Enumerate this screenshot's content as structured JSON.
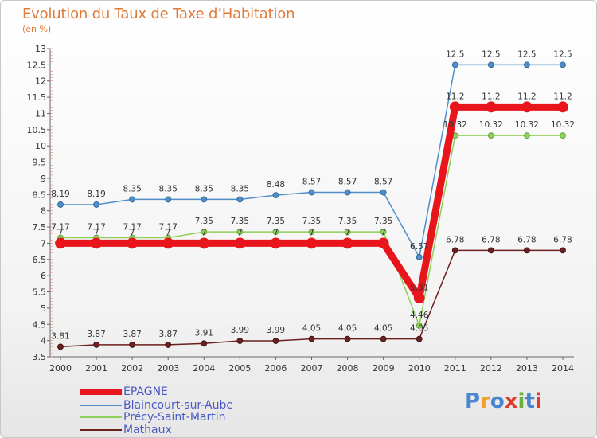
{
  "title": "Evolution du Taux de Taxe d’Habitation",
  "subtitle": "(en %)",
  "logo": {
    "text": "Proxiti",
    "colors": [
      "#4a86d0",
      "#f0a030",
      "#4a86d0",
      "#e03a2a",
      "#6ab03a",
      "#4a86d0",
      "#e03a2a"
    ]
  },
  "chart_data": {
    "type": "line",
    "title": "Evolution du Taux de Taxe d’Habitation",
    "ylabel": "(en %)",
    "x": [
      2000,
      2001,
      2002,
      2003,
      2004,
      2005,
      2006,
      2007,
      2008,
      2009,
      2010,
      2011,
      2012,
      2013,
      2014
    ],
    "ylim": [
      3.5,
      13
    ],
    "yticks": [
      3.5,
      4,
      4.5,
      5,
      5.5,
      6,
      6.5,
      7,
      7.5,
      8,
      8.5,
      9,
      9.5,
      10,
      10.5,
      11,
      11.5,
      12,
      12.5,
      13
    ],
    "grid": false,
    "legend_position": "bottom-left",
    "series": [
      {
        "name": "ÉPAGNE",
        "color": "#e8161c",
        "values": [
          7,
          7,
          7,
          7,
          7,
          7,
          7,
          7,
          7,
          7,
          5.31,
          11.2,
          11.2,
          11.2,
          11.2
        ],
        "labels": [
          "7",
          "7",
          "7",
          "7",
          "7",
          "7",
          "7",
          "7",
          "7",
          "7",
          "5.31",
          "11.2",
          "11.2",
          "11.2",
          "11.2"
        ]
      },
      {
        "name": "Blaincourt-sur-Aube",
        "color": "#4f8ec9",
        "values": [
          8.19,
          8.19,
          8.35,
          8.35,
          8.35,
          8.35,
          8.48,
          8.57,
          8.57,
          8.57,
          6.57,
          12.5,
          12.5,
          12.5,
          12.5
        ],
        "labels": [
          "8.19",
          "8.19",
          "8.35",
          "8.35",
          "8.35",
          "8.35",
          "8.48",
          "8.57",
          "8.57",
          "8.57",
          "6.57",
          "12.5",
          "12.5",
          "12.5",
          "12.5"
        ]
      },
      {
        "name": "Précy-Saint-Martin",
        "color": "#8ed05a",
        "values": [
          7.17,
          7.17,
          7.17,
          7.17,
          7.35,
          7.35,
          7.35,
          7.35,
          7.35,
          7.35,
          4.46,
          10.32,
          10.32,
          10.32,
          10.32
        ],
        "labels": [
          "7.17",
          "7.17",
          "7.17",
          "7.17",
          "7.35",
          "7.35",
          "7.35",
          "7.35",
          "7.35",
          "7.35",
          "4.46",
          "10.32",
          "10.32",
          "10.32",
          "10.32"
        ]
      },
      {
        "name": "Mathaux",
        "color": "#6b1f1f",
        "values": [
          3.81,
          3.87,
          3.87,
          3.87,
          3.91,
          3.99,
          3.99,
          4.05,
          4.05,
          4.05,
          4.05,
          6.78,
          6.78,
          6.78,
          6.78
        ],
        "labels": [
          "3.81",
          "3.87",
          "3.87",
          "3.87",
          "3.91",
          "3.99",
          "3.99",
          "4.05",
          "4.05",
          "4.05",
          "4.05",
          "6.78",
          "6.78",
          "6.78",
          "6.78"
        ]
      }
    ]
  }
}
